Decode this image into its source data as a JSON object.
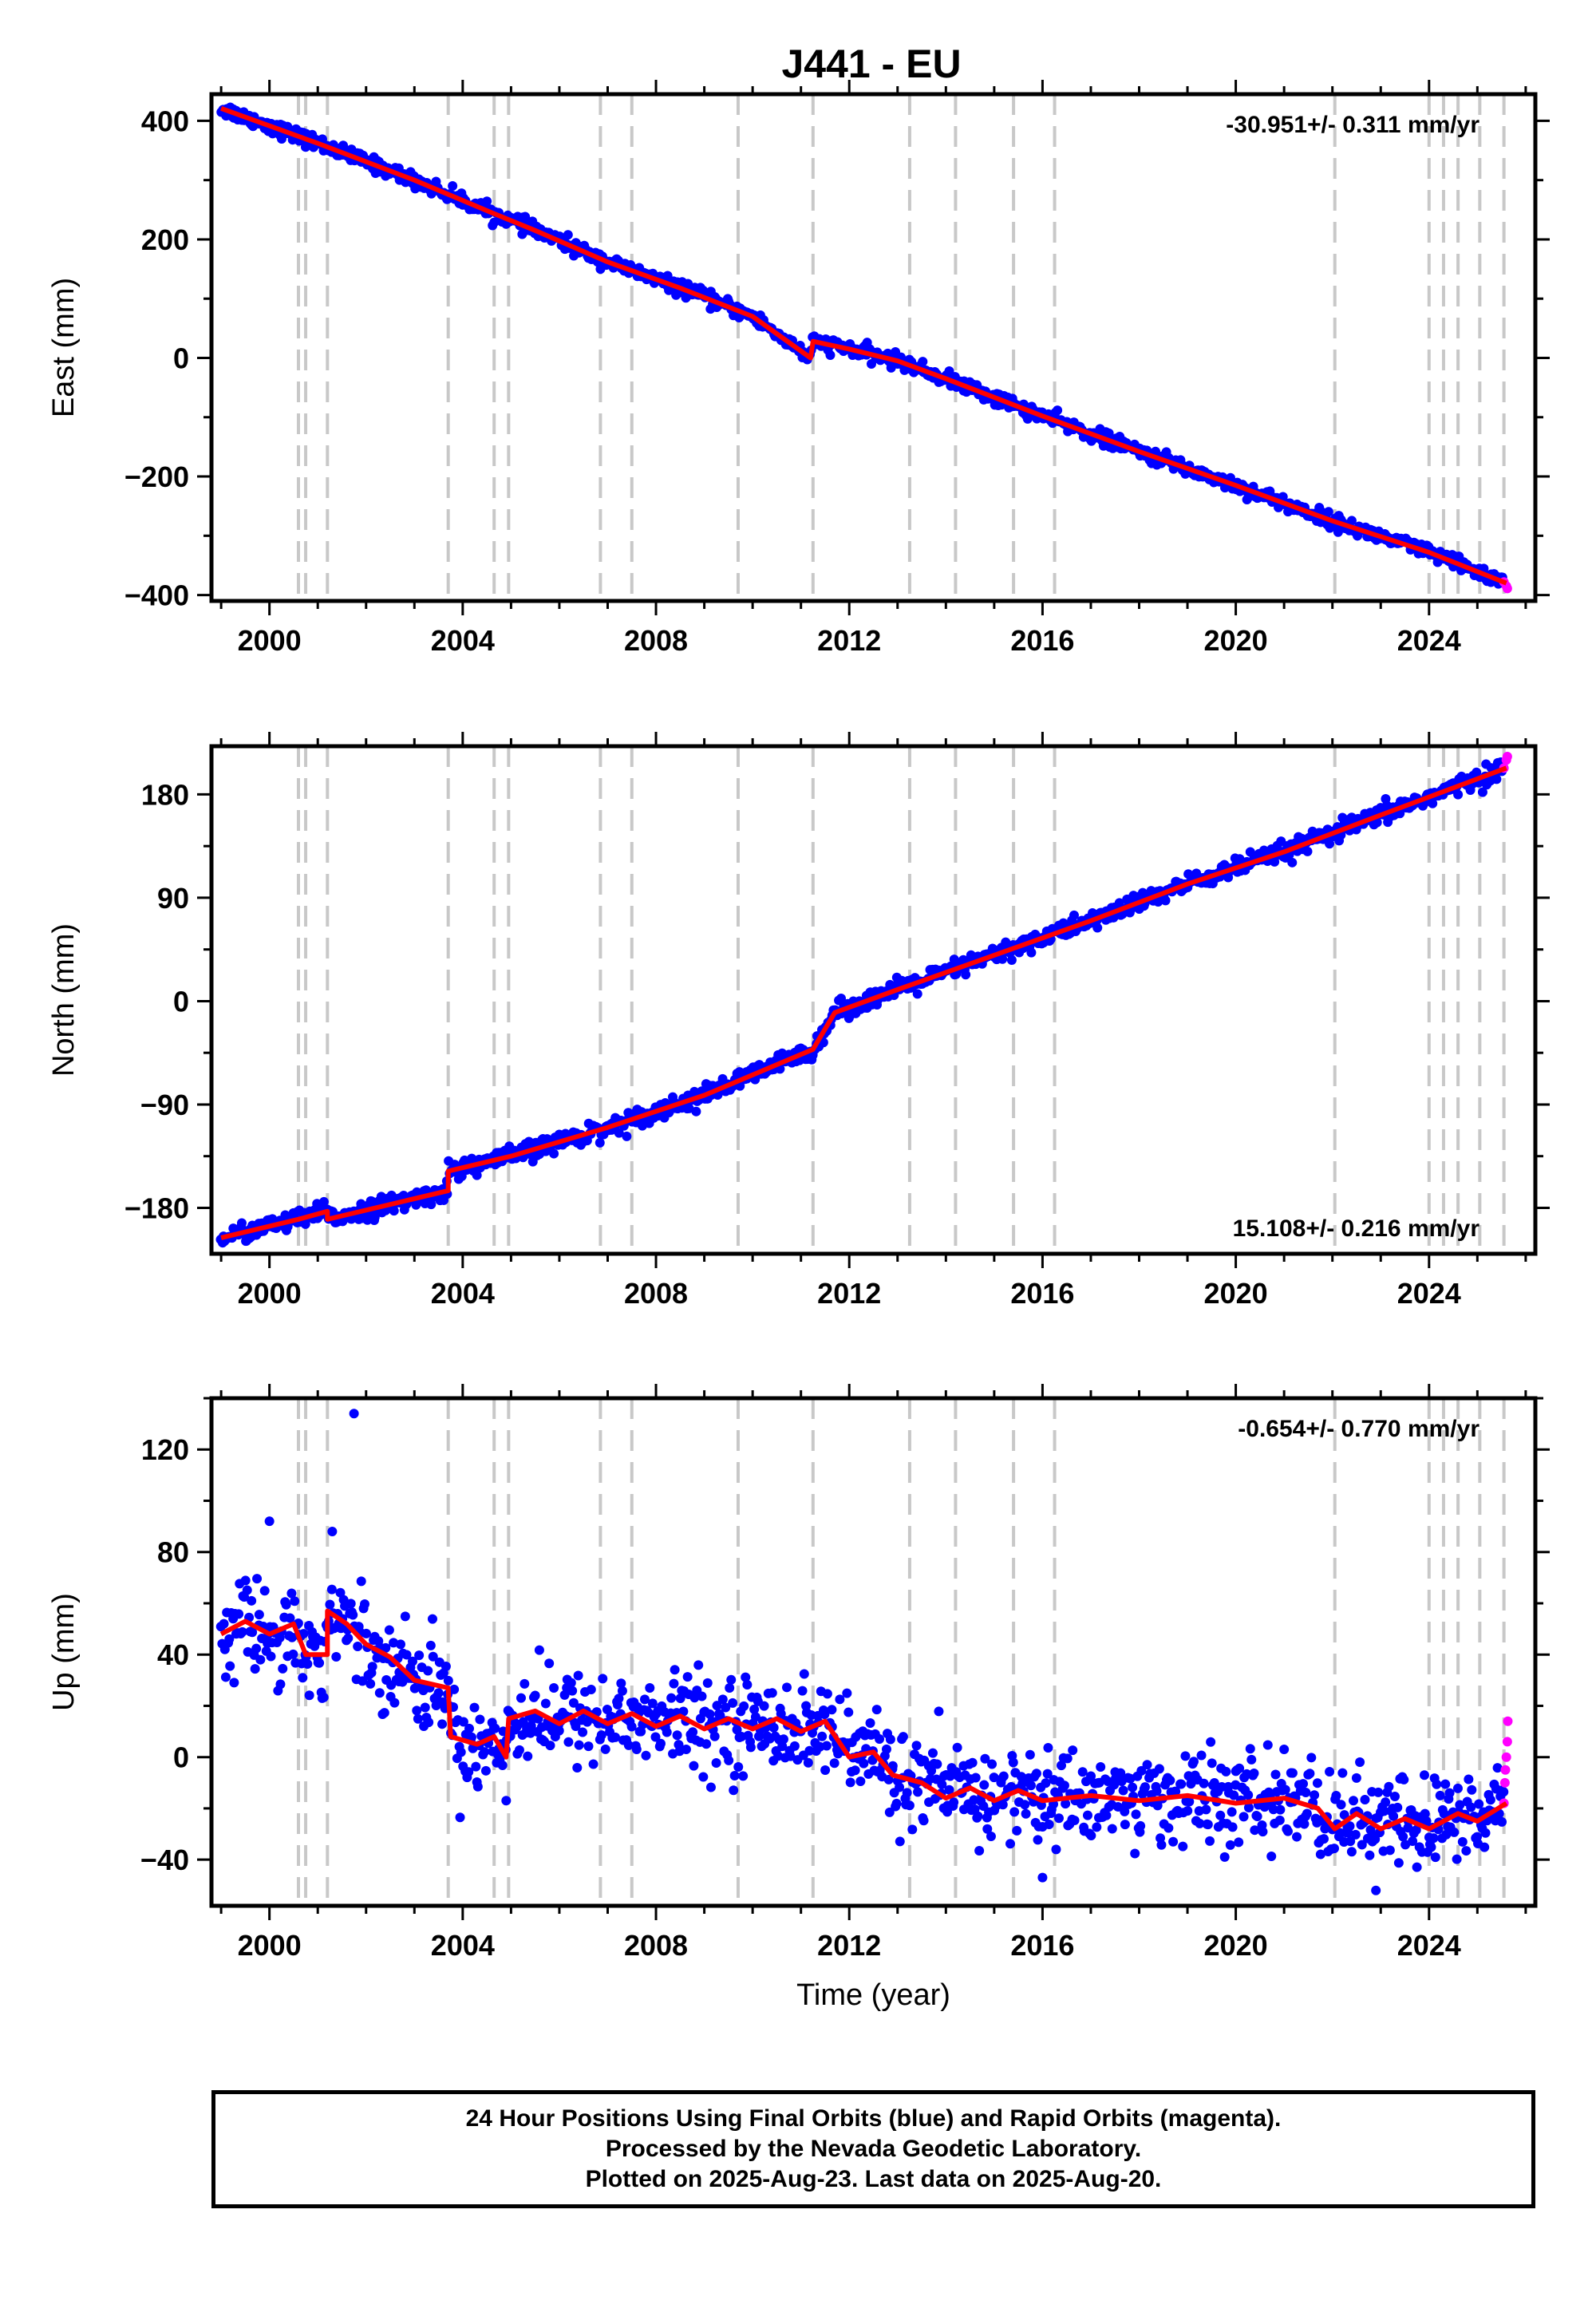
{
  "page_title": "J441 - EU",
  "footer": {
    "line1": "24 Hour Positions Using Final Orbits (blue) and Rapid Orbits (magenta).",
    "line2": "Processed by the Nevada Geodetic Laboratory.",
    "line3": "Plotted on 2025-Aug-23. Last data on 2025-Aug-20."
  },
  "colors": {
    "final_orbits": "#0000ff",
    "rapid_orbits": "#ff00ff",
    "model": "#ff0000",
    "event_lines": "#c8c8c8"
  },
  "chart_data": [
    {
      "type": "scatter",
      "name": "east",
      "title": "J441 - EU",
      "ylabel": "East (mm)",
      "xlabel": "",
      "xlim": [
        1998.8,
        2026.2
      ],
      "ylim": [
        -410,
        445
      ],
      "xticks": [
        2000,
        2004,
        2008,
        2012,
        2016,
        2020,
        2024
      ],
      "xtick_labels": [
        "2000",
        "2004",
        "2008",
        "2012",
        "2016",
        "2020",
        "2024"
      ],
      "yticks": [
        -400,
        -200,
        0,
        200,
        400
      ],
      "ytick_labels": [
        "−400",
        "−200",
        "0",
        "200",
        "400"
      ],
      "rate_annotation": "-30.951+/- 0.311 mm/yr",
      "annotation_position": "top-right",
      "event_lines_x": [
        2000.6,
        2000.75,
        2001.2,
        2003.7,
        2004.65,
        2004.95,
        2006.85,
        2007.5,
        2009.7,
        2011.25,
        2013.25,
        2014.2,
        2015.4,
        2016.25,
        2022.05,
        2024.0,
        2024.3,
        2024.6,
        2025.05,
        2025.55
      ],
      "trend_points": [
        [
          1999.0,
          421
        ],
        [
          2001.0,
          362
        ],
        [
          2003.0,
          300
        ],
        [
          2004.6,
          245
        ],
        [
          2005.5,
          215
        ],
        [
          2007.0,
          162
        ],
        [
          2008.5,
          118
        ],
        [
          2010.0,
          70
        ],
        [
          2011.2,
          0
        ],
        [
          2011.25,
          28
        ],
        [
          2012.0,
          15
        ],
        [
          2013.0,
          -5
        ],
        [
          2014.0,
          -35
        ],
        [
          2016.0,
          -98
        ],
        [
          2018.0,
          -158
        ],
        [
          2020.0,
          -215
        ],
        [
          2022.0,
          -275
        ],
        [
          2024.0,
          -328
        ],
        [
          2025.6,
          -380
        ]
      ],
      "scatter_spread": 6,
      "rapid_points": [
        [
          2025.55,
          -378
        ],
        [
          2025.6,
          -385
        ],
        [
          2025.62,
          -389
        ]
      ]
    },
    {
      "type": "scatter",
      "name": "north",
      "ylabel": "North (mm)",
      "xlabel": "",
      "xlim": [
        1998.8,
        2026.2
      ],
      "ylim": [
        -220,
        222
      ],
      "xticks": [
        2000,
        2004,
        2008,
        2012,
        2016,
        2020,
        2024
      ],
      "xtick_labels": [
        "2000",
        "2004",
        "2008",
        "2012",
        "2016",
        "2020",
        "2024"
      ],
      "yticks": [
        -180,
        -90,
        0,
        90,
        180
      ],
      "ytick_labels": [
        "−180",
        "−90",
        "0",
        "90",
        "180"
      ],
      "rate_annotation": "15.108+/- 0.216 mm/yr",
      "annotation_position": "bottom-right",
      "event_lines_x": [
        2000.6,
        2000.75,
        2001.2,
        2003.7,
        2004.65,
        2004.95,
        2006.85,
        2007.5,
        2009.7,
        2011.25,
        2013.25,
        2014.2,
        2015.4,
        2016.25,
        2022.05,
        2024.0,
        2024.3,
        2024.6,
        2025.05,
        2025.55
      ],
      "trend_points": [
        [
          1999.0,
          -206
        ],
        [
          2000.6,
          -190
        ],
        [
          2001.2,
          -183
        ],
        [
          2001.2,
          -190
        ],
        [
          2003.7,
          -165
        ],
        [
          2003.7,
          -148
        ],
        [
          2005.0,
          -135
        ],
        [
          2007.0,
          -110
        ],
        [
          2009.0,
          -82
        ],
        [
          2011.25,
          -42
        ],
        [
          2011.7,
          -10
        ],
        [
          2013.0,
          10
        ],
        [
          2015.0,
          40
        ],
        [
          2017.0,
          70
        ],
        [
          2019.0,
          102
        ],
        [
          2021.0,
          130
        ],
        [
          2023.0,
          162
        ],
        [
          2025.6,
          203
        ]
      ],
      "scatter_spread": 4,
      "rapid_points": [
        [
          2025.55,
          203
        ],
        [
          2025.6,
          210
        ],
        [
          2025.62,
          213
        ]
      ]
    },
    {
      "type": "scatter",
      "name": "up",
      "ylabel": "Up (mm)",
      "xlabel": "Time (year)",
      "xlim": [
        1998.8,
        2026.2
      ],
      "ylim": [
        -58,
        140
      ],
      "xticks": [
        2000,
        2004,
        2008,
        2012,
        2016,
        2020,
        2024
      ],
      "xtick_labels": [
        "2000",
        "2004",
        "2008",
        "2012",
        "2016",
        "2020",
        "2024"
      ],
      "yticks": [
        -40,
        0,
        40,
        80,
        120
      ],
      "ytick_labels": [
        "−40",
        "0",
        "40",
        "80",
        "120"
      ],
      "rate_annotation": "-0.654+/- 0.770 mm/yr",
      "annotation_position": "top-right",
      "event_lines_x": [
        2000.6,
        2000.75,
        2001.2,
        2003.7,
        2004.65,
        2004.95,
        2006.85,
        2007.5,
        2009.7,
        2011.25,
        2013.25,
        2014.2,
        2015.4,
        2016.25,
        2022.05,
        2024.0,
        2024.3,
        2024.6,
        2025.05,
        2025.55
      ],
      "trend_points": [
        [
          1999.0,
          48
        ],
        [
          1999.5,
          53
        ],
        [
          2000.0,
          48
        ],
        [
          2000.5,
          52
        ],
        [
          2000.75,
          40
        ],
        [
          2001.2,
          40
        ],
        [
          2001.2,
          57
        ],
        [
          2001.6,
          52
        ],
        [
          2002.0,
          44
        ],
        [
          2002.5,
          39
        ],
        [
          2003.0,
          30
        ],
        [
          2003.7,
          27
        ],
        [
          2003.75,
          8
        ],
        [
          2004.3,
          5
        ],
        [
          2004.65,
          8
        ],
        [
          2004.9,
          0
        ],
        [
          2004.95,
          15
        ],
        [
          2005.5,
          18
        ],
        [
          2006.0,
          13
        ],
        [
          2006.5,
          18
        ],
        [
          2007.0,
          13
        ],
        [
          2007.5,
          17
        ],
        [
          2008.0,
          12
        ],
        [
          2008.5,
          16
        ],
        [
          2009.0,
          11
        ],
        [
          2009.5,
          15
        ],
        [
          2010.0,
          11
        ],
        [
          2010.5,
          15
        ],
        [
          2011.0,
          10
        ],
        [
          2011.5,
          14
        ],
        [
          2012.0,
          0
        ],
        [
          2012.5,
          2
        ],
        [
          2012.9,
          -7
        ],
        [
          2013.5,
          -10
        ],
        [
          2014.0,
          -16
        ],
        [
          2014.5,
          -12
        ],
        [
          2015.0,
          -17
        ],
        [
          2015.5,
          -13
        ],
        [
          2016.0,
          -17
        ],
        [
          2017.0,
          -15
        ],
        [
          2018.0,
          -17
        ],
        [
          2019.0,
          -15
        ],
        [
          2020.0,
          -18
        ],
        [
          2021.0,
          -16
        ],
        [
          2021.7,
          -20
        ],
        [
          2022.05,
          -28
        ],
        [
          2022.5,
          -22
        ],
        [
          2023.0,
          -28
        ],
        [
          2023.5,
          -24
        ],
        [
          2024.0,
          -28
        ],
        [
          2024.6,
          -22
        ],
        [
          2025.0,
          -25
        ],
        [
          2025.6,
          -18
        ]
      ],
      "scatter_spread": 9,
      "outliers": [
        [
          2001.75,
          134
        ],
        [
          2000.0,
          92
        ],
        [
          2001.3,
          88
        ],
        [
          2004.9,
          -17
        ],
        [
          2022.9,
          -52
        ],
        [
          2016.0,
          -47
        ]
      ],
      "rapid_points": [
        [
          2025.55,
          -18
        ],
        [
          2025.57,
          -10
        ],
        [
          2025.58,
          -5
        ],
        [
          2025.6,
          0
        ],
        [
          2025.62,
          6
        ],
        [
          2025.63,
          14
        ]
      ]
    }
  ]
}
